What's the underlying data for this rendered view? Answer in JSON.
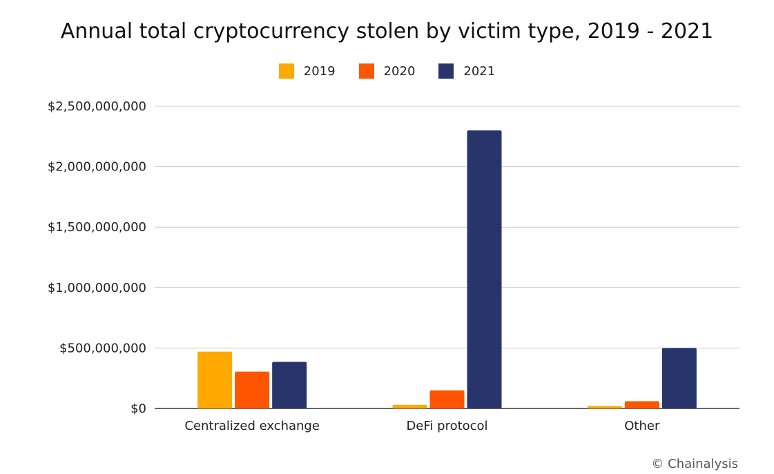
{
  "chart_data": {
    "type": "bar",
    "title": "Annual total cryptocurrency stolen by victim type, 2019 - 2021",
    "categories": [
      "Centralized exchange",
      "DeFi protocol",
      "Other"
    ],
    "series": [
      {
        "name": "2019",
        "color": "#FFA800",
        "values": [
          470000000,
          30000000,
          20000000
        ]
      },
      {
        "name": "2020",
        "color": "#FF5500",
        "values": [
          305000000,
          150000000,
          60000000
        ]
      },
      {
        "name": "2021",
        "color": "#27356B",
        "values": [
          385000000,
          2300000000,
          500000000
        ]
      }
    ],
    "y_ticks": [
      "$0",
      "$500,000,000",
      "$1,000,000,000",
      "$1,500,000,000",
      "$2,000,000,000",
      "$2,500,000,000"
    ],
    "y_tick_values": [
      0,
      500000000,
      1000000000,
      1500000000,
      2000000000,
      2500000000
    ],
    "ylim": [
      0,
      2500000000
    ],
    "xlabel": "",
    "ylabel": "",
    "grid": true,
    "legend_position": "top"
  },
  "credit": "© Chainalysis"
}
